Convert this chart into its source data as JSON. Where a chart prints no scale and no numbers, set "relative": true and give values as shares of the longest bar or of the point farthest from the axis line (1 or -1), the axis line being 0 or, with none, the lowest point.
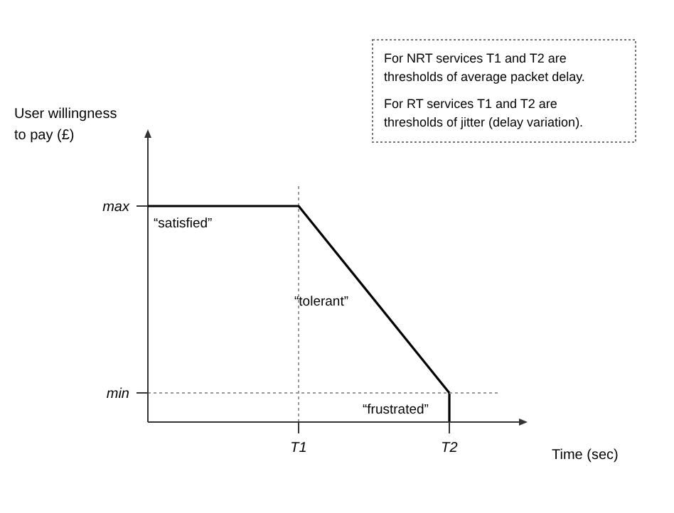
{
  "chart_data": {
    "type": "line",
    "relative": true,
    "xlabel": "Time (sec)",
    "ylabel": "User willingness to pay (£)",
    "categories": [
      null,
      "T1",
      "T2"
    ],
    "series": [
      {
        "color": "#000000",
        "values": [
          1,
          1,
          0.135
        ]
      }
    ],
    "ref_lines": [
      {
        "axis": "x",
        "value": "T1",
        "line_style": "dotted",
        "color": "#999999"
      },
      {
        "axis": "x",
        "value": "T2",
        "line_style": "solid",
        "color": "#000000"
      },
      {
        "axis": "y",
        "value": 0.135,
        "line_style": "dotted",
        "color": "#999999"
      }
    ],
    "annotations": [
      "For NRT services T1 and T2 are thresholds of average packet delay.",
      "For RT services T1 and T2 are thresholds of jitter (delay variation).",
      "“satisfied”",
      "“tolerant”",
      "“frustrated”",
      "max",
      "min"
    ],
    "marker": "none",
    "line_style": "solid"
  }
}
